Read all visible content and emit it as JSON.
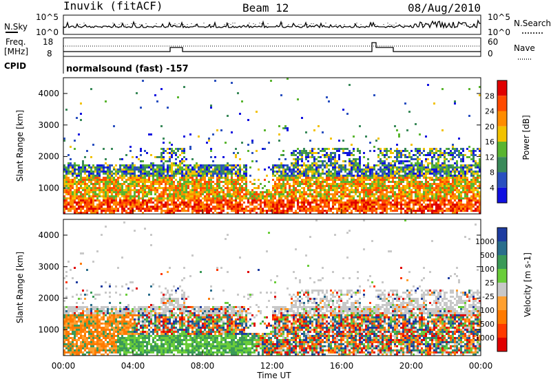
{
  "header": {
    "station": "Inuvik (fitACF)",
    "beam": "Beam 12",
    "date": "08/Aug/2010"
  },
  "nsky_panel": {
    "left_label": "N.Sky",
    "right_label": "N.Search",
    "left_ticks": [
      "10^5",
      "10^0"
    ],
    "right_ticks": [
      "10^5",
      "10^0"
    ]
  },
  "freq_panel": {
    "left_label_line1": "Freq.",
    "left_label_line2": "[MHz]",
    "right_label": "Nave",
    "left_ticks": [
      "18",
      "8"
    ],
    "right_ticks": [
      "60",
      "0"
    ]
  },
  "cpid": {
    "label": "CPID",
    "text": "normalsound (fast) -157"
  },
  "chart_data": [
    {
      "type": "heatmap",
      "name": "power",
      "ylabel": "Slant Range [km]",
      "xlabel": "Time UT",
      "yticks": [
        "1000",
        "2000",
        "3000",
        "4000"
      ],
      "xticks": [
        "00:00",
        "04:00",
        "08:00",
        "12:00",
        "16:00",
        "20:00",
        "00:00"
      ],
      "xlim": [
        "00:00",
        "24:00"
      ],
      "ylim": [
        180,
        4500
      ],
      "colorbar": {
        "label": "Power [dB]",
        "ticks": [
          "28",
          "24",
          "20",
          "16",
          "12",
          "8",
          "4"
        ],
        "colors": [
          "#e00000",
          "#ff4a00",
          "#ff8c00",
          "#f2c200",
          "#5ab530",
          "#3a8a5a",
          "#2a50c0",
          "#1010e0"
        ]
      }
    },
    {
      "type": "heatmap",
      "name": "velocity",
      "ylabel": "Slant Range [km]",
      "xlabel": "Time UT",
      "yticks": [
        "1000",
        "2000",
        "3000",
        "4000"
      ],
      "xticks": [
        "00:00",
        "04:00",
        "08:00",
        "12:00",
        "16:00",
        "20:00",
        "00:00"
      ],
      "xlim": [
        "00:00",
        "24:00"
      ],
      "ylim": [
        180,
        4500
      ],
      "colorbar": {
        "label": "Velocity [m s-1]",
        "ticks": [
          "1000",
          "500",
          "100",
          "25",
          "-25",
          "-100",
          "-500",
          "-1000"
        ],
        "colors": [
          "#1e3ca0",
          "#2a6e8c",
          "#3b9a58",
          "#6acd3a",
          "#c8c8c8",
          "#ffa030",
          "#ff7a00",
          "#ff3a00",
          "#e00000"
        ]
      }
    }
  ],
  "footer": {
    "xlabel": "Time UT"
  }
}
